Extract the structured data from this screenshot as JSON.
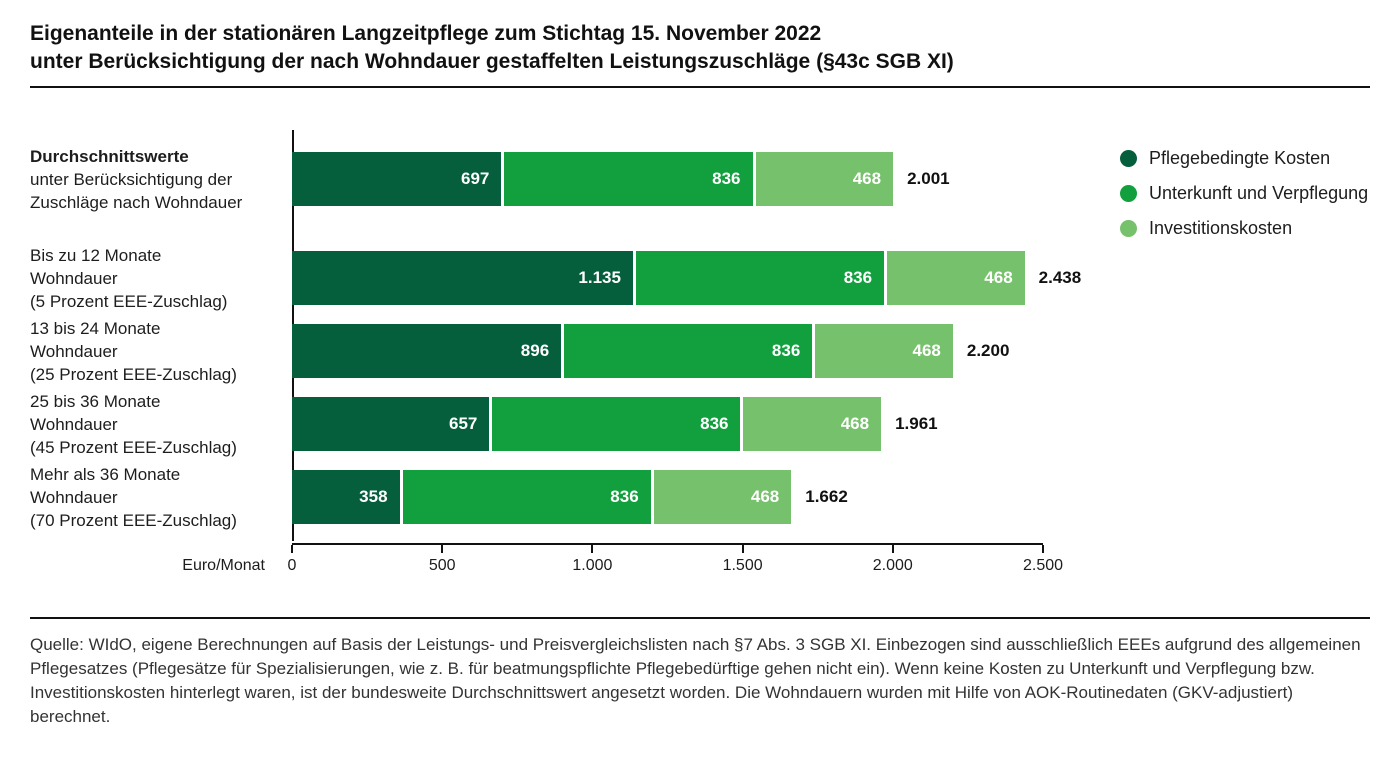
{
  "title": {
    "line1": "Eigenanteile in der stationären Langzeitpflege zum Stichtag 15. November 2022",
    "line2": "unter Berücksichtigung der nach Wohndauer gestaffelten Leistungszuschläge (§43c SGB XI)"
  },
  "chart_data": {
    "type": "bar",
    "orientation": "horizontal",
    "stacked": true,
    "unit_label": "Euro/Monat",
    "xlim": [
      0,
      2500
    ],
    "grid": false,
    "legend_position": "right",
    "x_ticks": [
      {
        "value": 0,
        "label": "0"
      },
      {
        "value": 500,
        "label": "500"
      },
      {
        "value": 1000,
        "label": "1.000"
      },
      {
        "value": 1500,
        "label": "1.500"
      },
      {
        "value": 2000,
        "label": "2.000"
      },
      {
        "value": 2500,
        "label": "2.500"
      }
    ],
    "series": [
      {
        "name": "Pflegebedingte Kosten",
        "color": "#055f3d",
        "values": [
          697,
          1135,
          896,
          657,
          358
        ]
      },
      {
        "name": "Unterkunft und Verpflegung",
        "color": "#12a03e",
        "values": [
          836,
          836,
          836,
          836,
          836
        ]
      },
      {
        "name": "Investitionskosten",
        "color": "#76c16b",
        "values": [
          468,
          468,
          468,
          468,
          468
        ]
      }
    ],
    "categories": [
      {
        "lines": [
          "Durchschnittswerte",
          "unter Berücksichtigung der",
          "Zuschläge nach Wohndauer"
        ],
        "bold_first": true
      },
      {
        "lines": [
          "Bis zu 12 Monate",
          "Wohndauer",
          "(5 Prozent EEE-Zuschlag)"
        ],
        "bold_first": false
      },
      {
        "lines": [
          "13 bis 24 Monate",
          "Wohndauer",
          "(25 Prozent EEE-Zuschlag)"
        ],
        "bold_first": false
      },
      {
        "lines": [
          "25 bis 36 Monate",
          "Wohndauer",
          "(45 Prozent EEE-Zuschlag)"
        ],
        "bold_first": false
      },
      {
        "lines": [
          "Mehr als 36 Monate",
          "Wohndauer",
          "(70 Prozent EEE-Zuschlag)"
        ],
        "bold_first": false
      }
    ],
    "value_labels": [
      [
        "697",
        "836",
        "468"
      ],
      [
        "1.135",
        "836",
        "468"
      ],
      [
        "896",
        "836",
        "468"
      ],
      [
        "657",
        "836",
        "468"
      ],
      [
        "358",
        "836",
        "468"
      ]
    ],
    "totals": [
      "2.001",
      "2.438",
      "2.200",
      "1.961",
      "1.662"
    ]
  },
  "footer": {
    "source": "Quelle: WIdO, eigene Berechnungen auf Basis der Leistungs- und Preisvergleichslisten nach §7 Abs. 3 SGB XI. Einbezogen sind ausschließlich EEEs aufgrund des allgemeinen Pflegesatzes (Pflegesätze für Spezialisierungen, wie z. B. für beatmungspflichte Pflegebedürftige gehen nicht ein). Wenn keine Kosten zu Unterkunft und Verpflegung bzw. Investitionskosten hinterlegt waren, ist der bundesweite Durchschnittswert angesetzt worden. Die Wohndauern wurden mit Hilfe von AOK-Routinedaten (GKV-adjustiert) berechnet."
  }
}
